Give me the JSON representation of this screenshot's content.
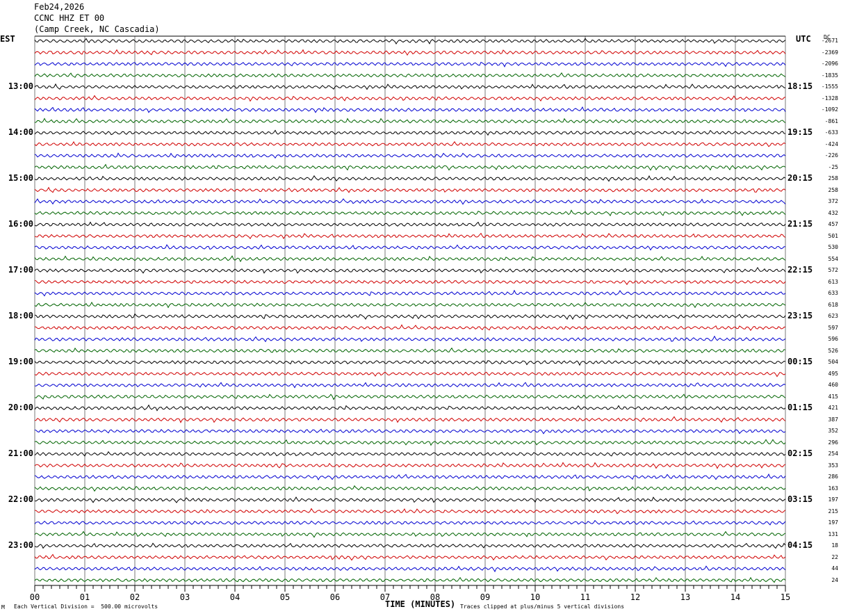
{
  "header": {
    "date": "Feb24,2026",
    "station": "CCNC HHZ ET 00",
    "location": "(Camp Creek, NC Cascadia)"
  },
  "left_zone": "EST",
  "right_zone": "UTC",
  "dc_label": "DC",
  "footer": {
    "scale_note": "Each Vertical Division =  500.00 microvolts",
    "xlabel": "TIME (MINUTES)",
    "clip_note": "Traces clipped at plus/minus 5 vertical divisions",
    "corner_mark": "M"
  },
  "colors": {
    "trace_cycle": [
      "#000000",
      "#d00000",
      "#0000d0",
      "#006400"
    ],
    "grid": "#000000"
  },
  "chart_data": {
    "type": "line",
    "title": "CCNC HHZ ET 00",
    "xlabel": "TIME (MINUTES)",
    "xlim": [
      0,
      15
    ],
    "x_ticks": [
      "00",
      "01",
      "02",
      "03",
      "04",
      "05",
      "06",
      "07",
      "08",
      "09",
      "10",
      "11",
      "12",
      "13",
      "14",
      "15"
    ],
    "left_hour_labels": [
      "13:00",
      "14:00",
      "15:00",
      "16:00",
      "17:00",
      "18:00",
      "19:00",
      "20:00",
      "21:00",
      "22:00",
      "23:00"
    ],
    "right_hour_labels": [
      "18:15",
      "19:15",
      "20:15",
      "21:15",
      "22:15",
      "23:15",
      "00:15",
      "01:15",
      "02:15",
      "03:15",
      "04:15"
    ],
    "dc_offsets": [
      "-2671",
      "-2369",
      "-2096",
      "-1835",
      "-1555",
      "-1328",
      "-1092",
      "-861",
      "-633",
      "-424",
      "-226",
      "-25",
      "258",
      "258",
      "372",
      "432",
      "457",
      "501",
      "530",
      "554",
      "572",
      "613",
      "633",
      "618",
      "623",
      "597",
      "596",
      "526",
      "504",
      "495",
      "460",
      "415",
      "421",
      "387",
      "352",
      "296",
      "254",
      "353",
      "286",
      "163",
      "197",
      "215",
      "197",
      "131",
      "18",
      "22",
      "44",
      "24"
    ],
    "trace_count": 48
  }
}
